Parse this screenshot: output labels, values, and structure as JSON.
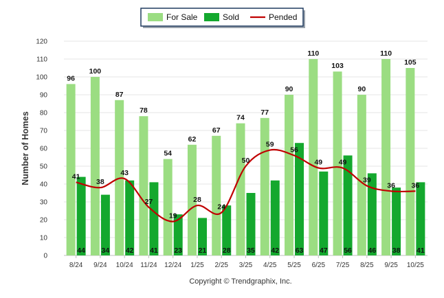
{
  "chart_data": {
    "type": "bar",
    "title": "",
    "xlabel": "",
    "ylabel": "Number of Homes",
    "ylim": [
      0,
      120
    ],
    "ytick_step": 10,
    "categories": [
      "8/24",
      "9/24",
      "10/24",
      "11/24",
      "12/24",
      "1/25",
      "2/25",
      "3/25",
      "4/25",
      "5/25",
      "6/25",
      "7/25",
      "8/25",
      "9/25",
      "10/25"
    ],
    "series": [
      {
        "name": "For Sale",
        "kind": "bar",
        "color": "#9bdd82",
        "values": [
          96,
          100,
          87,
          78,
          54,
          62,
          67,
          74,
          77,
          90,
          110,
          103,
          90,
          110,
          105
        ]
      },
      {
        "name": "Sold",
        "kind": "bar",
        "color": "#14a82e",
        "values": [
          44,
          34,
          42,
          41,
          23,
          21,
          28,
          35,
          42,
          63,
          47,
          56,
          46,
          38,
          41
        ]
      },
      {
        "name": "Pended",
        "kind": "line",
        "color": "#c00000",
        "values": [
          41,
          38,
          43,
          27,
          19,
          28,
          24,
          50,
          59,
          56,
          49,
          49,
          39,
          36,
          36
        ]
      }
    ],
    "legend_position": "top-center",
    "grid": true
  },
  "footer": {
    "copyright": "Copyright © Trendgraphix, Inc."
  }
}
